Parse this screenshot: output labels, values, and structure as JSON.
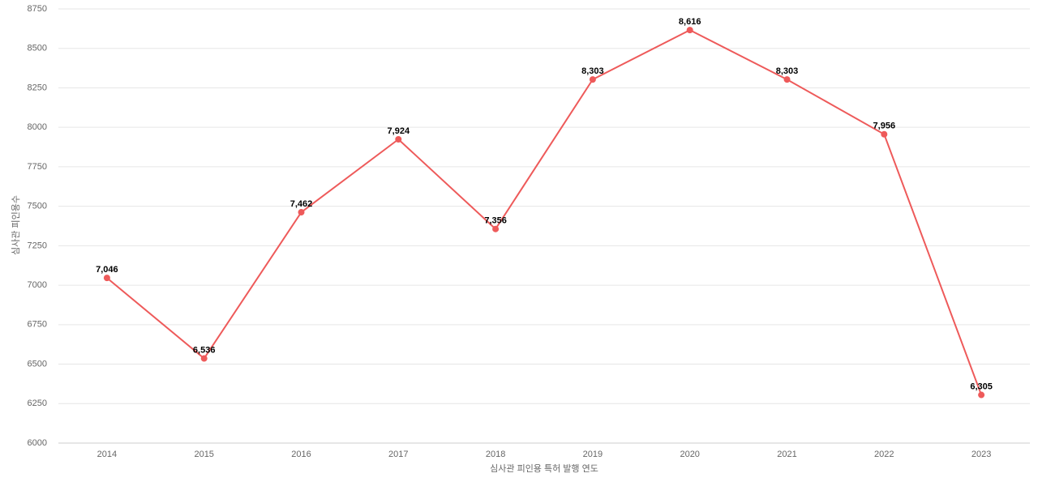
{
  "chart_data": {
    "type": "line",
    "x_label": "심사관 피인용 특허 발행 연도",
    "y_label": "심사관 피인용수",
    "categories": [
      "2014",
      "2015",
      "2016",
      "2017",
      "2018",
      "2019",
      "2020",
      "2021",
      "2022",
      "2023"
    ],
    "values": [
      7046,
      6536,
      7462,
      7924,
      7356,
      8303,
      8616,
      8303,
      7956,
      6305
    ],
    "value_labels": [
      "7,046",
      "6,536",
      "7,462",
      "7,924",
      "7,356",
      "8,303",
      "8,616",
      "8,303",
      "7,956",
      "6,305"
    ],
    "color": "#ee5a5a",
    "ylim": [
      6000,
      8750
    ],
    "yticks": [
      6000,
      6250,
      6500,
      6750,
      7000,
      7250,
      7500,
      7750,
      8000,
      8250,
      8500,
      8750
    ],
    "grid": true
  }
}
